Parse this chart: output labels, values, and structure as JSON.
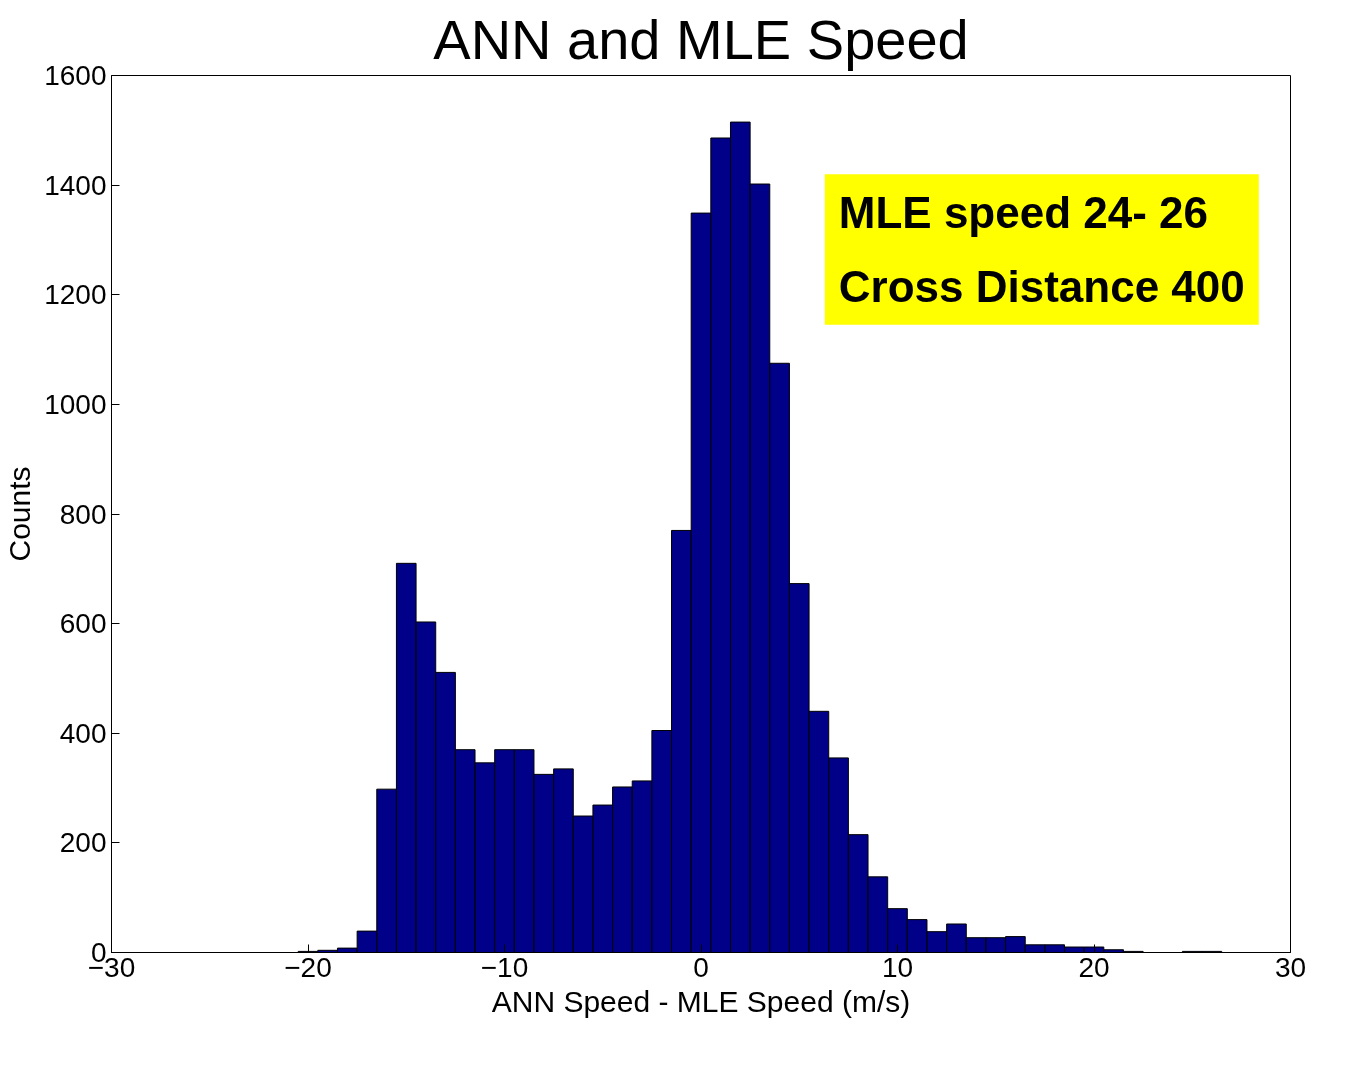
{
  "chart_data": {
    "type": "histogram",
    "title": "ANN and MLE Speed",
    "xlabel": "ANN Speed - MLE Speed (m/s)",
    "ylabel": "Counts",
    "color": "#000088",
    "bins": [
      -20.5,
      -19.5,
      -18.5,
      -17.5,
      -16.5,
      -15.5,
      -14.5,
      -13.5,
      -12.5,
      -11.5,
      -10.5,
      -9.5,
      -8.5,
      -7.5,
      -6.5,
      -5.5,
      -4.5,
      -3.5,
      -2.5,
      -1.5,
      -0.5,
      0.5,
      1.5,
      2.5,
      3.5,
      4.5,
      5.5,
      6.5,
      7.5,
      8.5,
      9.5,
      10.5,
      11.5,
      12.5,
      13.5,
      14.5,
      15.5,
      16.5,
      17.5,
      18.5,
      19.5,
      20.5,
      21.5,
      22.5,
      23.5,
      24.5,
      25.5,
      26.5
    ],
    "values": [
      2,
      4,
      8,
      39,
      298,
      710,
      603,
      511,
      370,
      346,
      370,
      370,
      325,
      335,
      249,
      269,
      302,
      313,
      405,
      770,
      1349,
      1486,
      1515,
      1402,
      1075,
      673,
      440,
      355,
      215,
      138,
      80,
      60,
      38,
      52,
      27,
      27,
      29,
      14,
      14,
      10,
      10,
      5,
      2,
      0,
      0,
      2,
      2
    ],
    "xlim": [
      -30,
      30
    ],
    "xticks": [
      -30,
      -20,
      -10,
      0,
      10,
      20,
      30
    ],
    "ylim": [
      0,
      1600
    ],
    "yticks": [
      0,
      200,
      400,
      600,
      800,
      1000,
      1200,
      1400,
      1600
    ],
    "grid": false,
    "annotations": [
      "MLE speed 24- 26",
      "Cross Distance 400"
    ]
  }
}
